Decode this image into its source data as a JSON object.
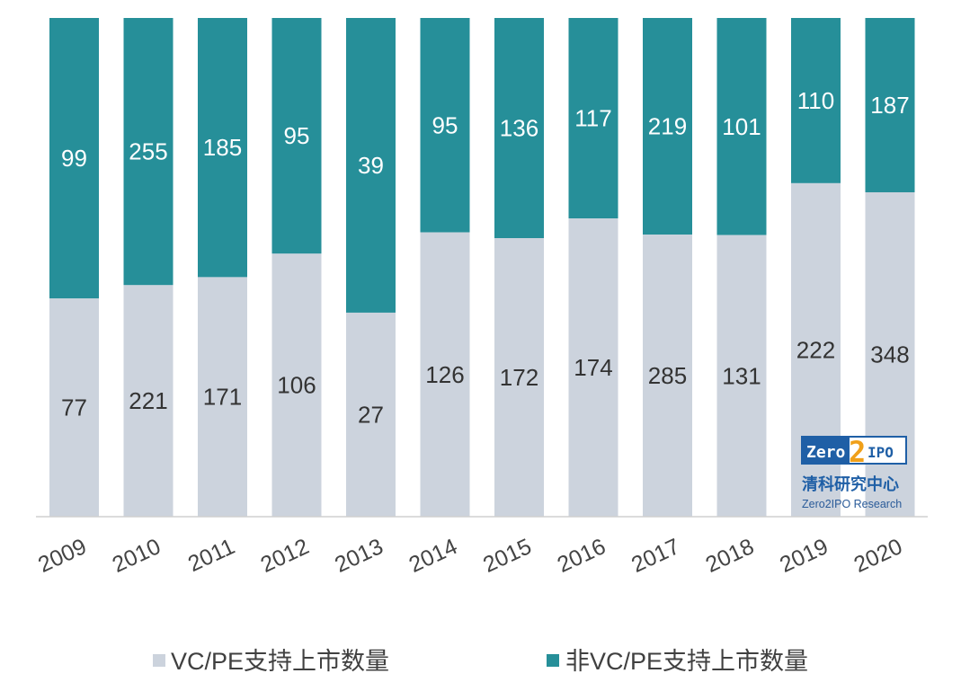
{
  "colors": {
    "vcpe": "#ccd3dd",
    "non_vcpe": "#268f99",
    "axis": "#d0d0d0",
    "logo_blue": "#1f5fa6"
  },
  "chart_data": {
    "type": "bar",
    "stacked": true,
    "normalized": true,
    "categories": [
      "2009",
      "2010",
      "2011",
      "2012",
      "2013",
      "2014",
      "2015",
      "2016",
      "2017",
      "2018",
      "2019",
      "2020"
    ],
    "series": [
      {
        "name": "VC/PE支持上市数量",
        "values": [
          77,
          221,
          171,
          106,
          27,
          126,
          172,
          174,
          285,
          131,
          222,
          348
        ]
      },
      {
        "name": "非VC/PE支持上市数量",
        "values": [
          99,
          255,
          185,
          95,
          39,
          95,
          136,
          117,
          219,
          101,
          110,
          187
        ]
      }
    ],
    "ylim": [
      0,
      1
    ],
    "grid": false,
    "legend_position": "bottom"
  },
  "logo": {
    "brand_left": "Zero",
    "brand_digit": "2",
    "brand_right": "IPO",
    "chinese_name": "清科研究中心",
    "english_name": "Zero2IPO Research"
  }
}
